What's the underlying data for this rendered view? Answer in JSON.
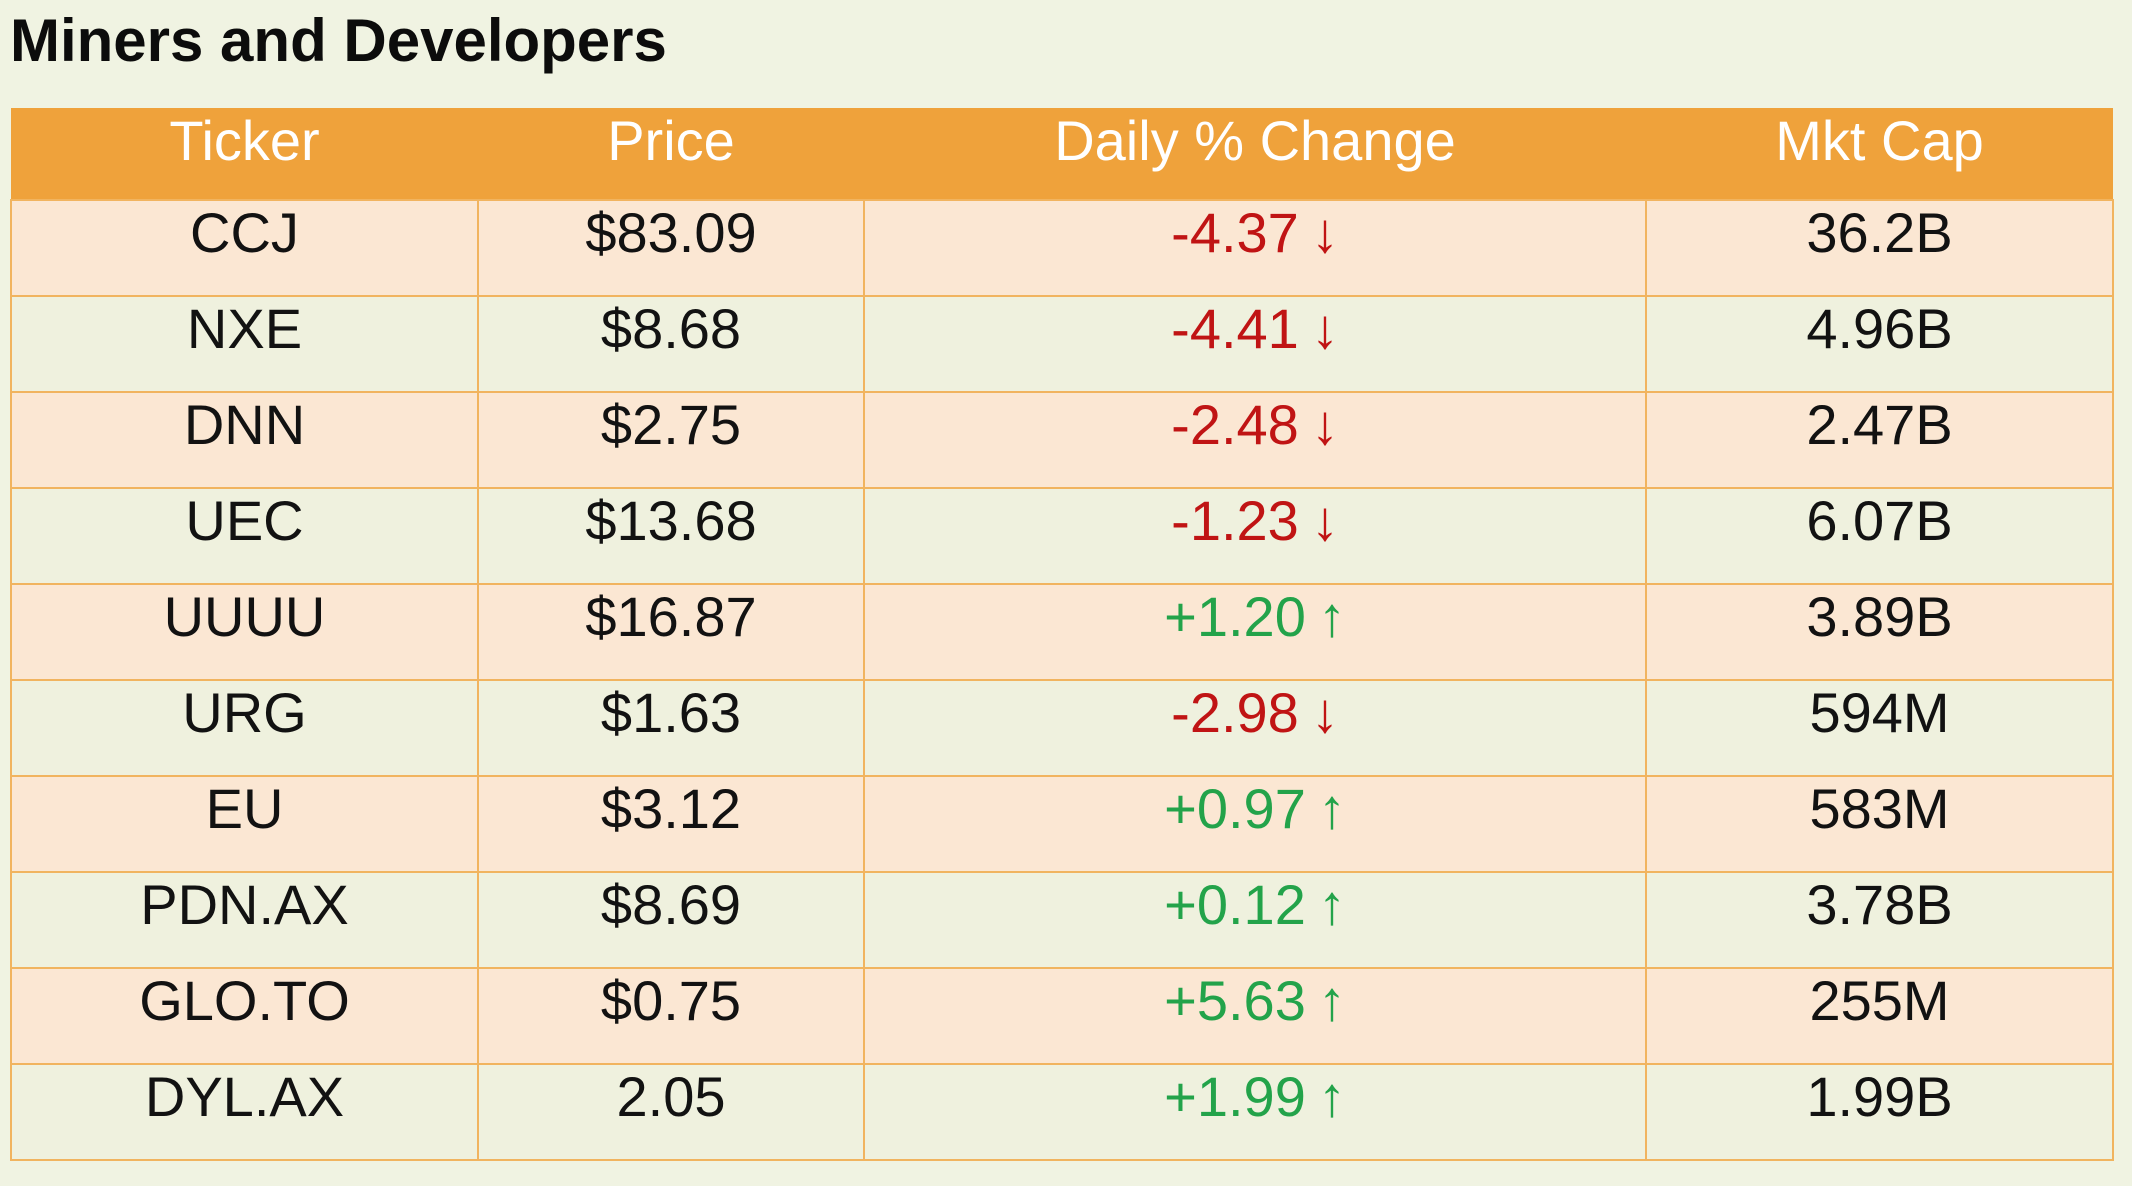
{
  "page": {
    "title": "Miners and Developers"
  },
  "table": {
    "columns": [
      "Ticker",
      "Price",
      "Daily % Change",
      "Mkt Cap"
    ],
    "rows": [
      {
        "ticker": "CCJ",
        "price": "$83.09",
        "change": "-4.37",
        "direction": "down",
        "mktcap": "36.2B"
      },
      {
        "ticker": "NXE",
        "price": "$8.68",
        "change": "-4.41",
        "direction": "down",
        "mktcap": "4.96B"
      },
      {
        "ticker": "DNN",
        "price": "$2.75",
        "change": "-2.48",
        "direction": "down",
        "mktcap": "2.47B"
      },
      {
        "ticker": "UEC",
        "price": "$13.68",
        "change": "-1.23",
        "direction": "down",
        "mktcap": "6.07B"
      },
      {
        "ticker": "UUUU",
        "price": "$16.87",
        "change": "+1.20",
        "direction": "up",
        "mktcap": "3.89B"
      },
      {
        "ticker": "URG",
        "price": "$1.63",
        "change": "-2.98",
        "direction": "down",
        "mktcap": "594M"
      },
      {
        "ticker": "EU",
        "price": "$3.12",
        "change": "+0.97",
        "direction": "up",
        "mktcap": "583M"
      },
      {
        "ticker": "PDN.AX",
        "price": "$8.69",
        "change": "+0.12",
        "direction": "up",
        "mktcap": "3.78B"
      },
      {
        "ticker": "GLO.TO",
        "price": "$0.75",
        "change": "+5.63",
        "direction": "up",
        "mktcap": "255M"
      },
      {
        "ticker": "DYL.AX",
        "price": "2.05",
        "change": "+1.99",
        "direction": "up",
        "mktcap": "1.99B"
      }
    ]
  },
  "icons": {
    "up-arrow": "↑",
    "down-arrow": "↓"
  },
  "colors": {
    "page-bg": "#F0F3E2",
    "header-bg": "#EFA23B",
    "header-text": "#FFFFFF",
    "row-peach": "#FBE7D3",
    "row-cream": "#EFF1DE",
    "border": "#F1B45F",
    "red": "#C01414",
    "green": "#23A34A"
  },
  "chart_data": {
    "type": "table",
    "title": "Miners and Developers",
    "columns": [
      "Ticker",
      "Price",
      "Daily % Change",
      "Mkt Cap"
    ],
    "rows": [
      [
        "CCJ",
        "$83.09",
        "-4.37 ↓",
        "36.2B"
      ],
      [
        "NXE",
        "$8.68",
        "-4.41 ↓",
        "4.96B"
      ],
      [
        "DNN",
        "$2.75",
        "-2.48 ↓",
        "2.47B"
      ],
      [
        "UEC",
        "$13.68",
        "-1.23 ↓",
        "6.07B"
      ],
      [
        "UUUU",
        "$16.87",
        "+1.20 ↑",
        "3.89B"
      ],
      [
        "URG",
        "$1.63",
        "-2.98 ↓",
        "594M"
      ],
      [
        "EU",
        "$3.12",
        "+0.97 ↑",
        "583M"
      ],
      [
        "PDN.AX",
        "$8.69",
        "+0.12 ↑",
        "3.78B"
      ],
      [
        "GLO.TO",
        "$0.75",
        "+5.63 ↑",
        "255M"
      ],
      [
        "DYL.AX",
        "2.05",
        "+1.99 ↑",
        "1.99B"
      ]
    ],
    "notes": {
      "price_numeric": [
        83.09,
        8.68,
        2.75,
        13.68,
        16.87,
        1.63,
        3.12,
        8.69,
        0.75,
        2.05
      ],
      "daily_pct_change_numeric": [
        -4.37,
        -4.41,
        -2.48,
        -1.23,
        1.2,
        -2.98,
        0.97,
        0.12,
        5.63,
        1.99
      ],
      "negative_color": "#C01414",
      "positive_color": "#23A34A",
      "row_striping": "odd rows peach, even rows cream",
      "legend": "none",
      "grid": "orange cell borders on data rows only"
    }
  }
}
